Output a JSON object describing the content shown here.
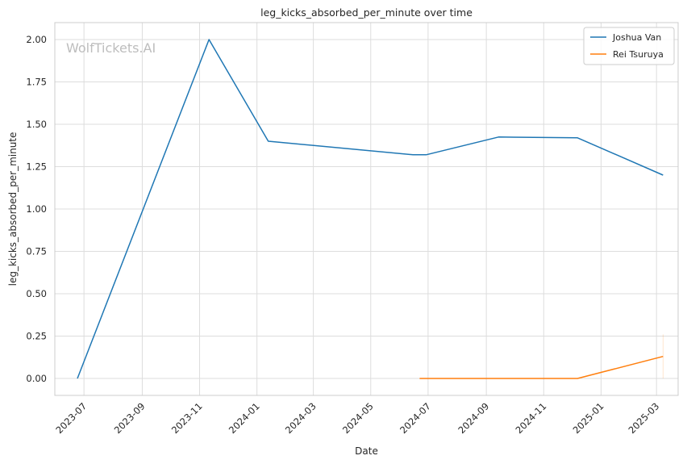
{
  "chart_data": {
    "type": "line",
    "title": "leg_kicks_absorbed_per_minute over time",
    "xlabel": "Date",
    "ylabel": "leg_kicks_absorbed_per_minute",
    "watermark": "WolfTickets.AI",
    "x_ticks": [
      "2023-07",
      "2023-09",
      "2023-11",
      "2024-01",
      "2024-03",
      "2024-05",
      "2024-07",
      "2024-09",
      "2024-11",
      "2025-01",
      "2025-03"
    ],
    "y_ticks": [
      "0.00",
      "0.25",
      "0.50",
      "0.75",
      "1.00",
      "1.25",
      "1.50",
      "1.75",
      "2.00"
    ],
    "ylim": [
      -0.1,
      2.1
    ],
    "xlim": [
      "2023-05-31",
      "2025-03-24"
    ],
    "grid": true,
    "legend_position": "top-right",
    "series": [
      {
        "name": "Joshua Van",
        "color": "#1f77b4",
        "x": [
          "2023-06-24",
          "2023-11-11",
          "2024-01-13",
          "2024-06-15",
          "2024-06-29",
          "2024-09-14",
          "2024-12-07",
          "2025-03-08"
        ],
        "values": [
          0.0,
          2.0,
          1.4,
          1.32,
          1.32,
          1.425,
          1.42,
          1.2
        ]
      },
      {
        "name": "Rei Tsuruya",
        "color": "#ff7f0e",
        "x": [
          "2024-06-22",
          "2024-09-14",
          "2024-12-07",
          "2025-03-08"
        ],
        "values": [
          0.0,
          0.0,
          0.0,
          0.13
        ]
      }
    ]
  }
}
